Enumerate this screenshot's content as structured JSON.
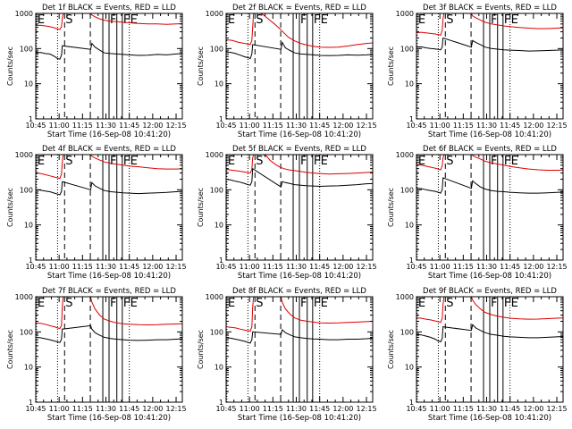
{
  "colors": {
    "events": "#000000",
    "lld": "#dd0000",
    "axes": "#000000"
  },
  "chart_data": {
    "type": "line",
    "layout": "3x3 grid of light-curve panels",
    "common": {
      "subtitle": "BLACK = Events, RED = LLD",
      "xlabel": "Start Time (16-Sep-08 10:41:20)",
      "ylabel": "Counts/sec",
      "x_unit": "minutes after 10:45",
      "xlim": [
        0,
        94
      ],
      "xticks": [
        0,
        15,
        30,
        45,
        60,
        75,
        90
      ],
      "xtick_labels": [
        "10:45",
        "11:00",
        "11:15",
        "11:30",
        "11:45",
        "12:00",
        "12:15"
      ],
      "yscale": "log",
      "ylim": [
        1,
        1000
      ],
      "yticks": [
        1,
        10,
        100,
        1000
      ],
      "ytick_labels": [
        "1",
        "10",
        "100",
        "1000"
      ],
      "markers": [
        {
          "label": "E",
          "x": 0.5,
          "style": "dotted"
        },
        {
          "label": "",
          "x": 14,
          "style": "dotted"
        },
        {
          "label": "S",
          "x": 18.5,
          "style": "dashed"
        },
        {
          "label": "",
          "x": 35,
          "style": "dashed"
        },
        {
          "label": "",
          "x": 43,
          "style": "solid"
        },
        {
          "label": "F",
          "x": 47,
          "style": "solid"
        },
        {
          "label": "",
          "x": 52,
          "style": "solid"
        },
        {
          "label": "F",
          "x": 55.5,
          "style": "solid"
        },
        {
          "label": "E",
          "x": 60,
          "style": "dotted"
        }
      ]
    },
    "panels": [
      {
        "title": "Det 1f",
        "events": {
          "x": [
            0,
            3,
            6,
            9,
            12,
            14,
            15.5,
            16.5,
            17,
            35.2,
            36,
            38,
            41,
            44,
            48,
            52,
            56,
            60,
            66,
            72,
            78,
            84,
            90,
            94
          ],
          "y": [
            75,
            78,
            72,
            70,
            60,
            52,
            50,
            65,
            120,
            95,
            140,
            110,
            90,
            75,
            72,
            70,
            68,
            66,
            64,
            65,
            68,
            66,
            70,
            72
          ]
        },
        "lld": {
          "x": [
            0,
            3,
            6,
            9,
            12,
            14,
            15.5,
            16.5,
            17,
            17.6,
            35.2,
            36,
            38,
            41,
            44,
            48,
            52,
            56,
            60,
            66,
            72,
            78,
            84,
            90,
            94
          ],
          "y": [
            450,
            460,
            440,
            420,
            390,
            360,
            350,
            420,
            700,
            1000,
            1000,
            900,
            800,
            700,
            640,
            600,
            580,
            560,
            540,
            520,
            500,
            500,
            490,
            500,
            510
          ]
        }
      },
      {
        "title": "Det 2f",
        "events": {
          "x": [
            0,
            3,
            6,
            9,
            12,
            14,
            15.5,
            16.5,
            17,
            35.2,
            36,
            38,
            41,
            44,
            48,
            52,
            56,
            60,
            66,
            72,
            78,
            84,
            90,
            94
          ],
          "y": [
            80,
            78,
            72,
            65,
            58,
            55,
            52,
            70,
            130,
            95,
            150,
            105,
            88,
            75,
            70,
            68,
            66,
            64,
            63,
            64,
            66,
            65,
            66,
            68
          ]
        },
        "lld": {
          "x": [
            0,
            4,
            8,
            12,
            15.5,
            16.5,
            17,
            17.6,
            22,
            24,
            27,
            31,
            34,
            37,
            40,
            44,
            48,
            52,
            56,
            60,
            66,
            72,
            78,
            84,
            90,
            94
          ],
          "y": [
            180,
            170,
            150,
            140,
            130,
            170,
            400,
            1000,
            1000,
            900,
            700,
            500,
            380,
            280,
            210,
            165,
            140,
            125,
            115,
            110,
            108,
            110,
            118,
            130,
            140,
            145
          ]
        }
      },
      {
        "title": "Det 3f",
        "events": {
          "x": [
            0,
            3,
            6,
            9,
            12,
            14,
            15.5,
            16.5,
            17,
            35.2,
            36,
            38,
            41,
            44,
            48,
            52,
            56,
            60,
            66,
            72,
            78,
            84,
            90,
            94
          ],
          "y": [
            110,
            112,
            105,
            100,
            98,
            95,
            92,
            110,
            200,
            110,
            170,
            150,
            130,
            110,
            100,
            96,
            92,
            90,
            88,
            85,
            86,
            88,
            90,
            92
          ]
        },
        "lld": {
          "x": [
            0,
            3,
            6,
            9,
            12,
            14,
            15.5,
            16.5,
            17,
            17.6,
            35.2,
            36,
            38,
            41,
            44,
            48,
            52,
            56,
            60,
            66,
            72,
            78,
            84,
            90,
            94
          ],
          "y": [
            280,
            290,
            280,
            270,
            260,
            250,
            240,
            330,
            700,
            1000,
            1000,
            850,
            750,
            650,
            560,
            500,
            470,
            440,
            420,
            400,
            380,
            370,
            370,
            380,
            390
          ]
        }
      },
      {
        "title": "Det 4f",
        "events": {
          "x": [
            0,
            3,
            6,
            9,
            12,
            14,
            15.5,
            16.5,
            17,
            35.2,
            36,
            38,
            41,
            44,
            48,
            52,
            56,
            60,
            66,
            72,
            78,
            84,
            90,
            94
          ],
          "y": [
            100,
            98,
            92,
            88,
            80,
            75,
            72,
            90,
            170,
            100,
            160,
            130,
            110,
            95,
            88,
            85,
            82,
            80,
            78,
            80,
            82,
            84,
            88,
            90
          ]
        },
        "lld": {
          "x": [
            0,
            3,
            6,
            9,
            12,
            14,
            15.5,
            16.5,
            17,
            17.6,
            35.2,
            36,
            38,
            41,
            44,
            48,
            52,
            56,
            60,
            66,
            72,
            78,
            84,
            90,
            94
          ],
          "y": [
            300,
            290,
            270,
            250,
            230,
            220,
            210,
            280,
            600,
            1000,
            1000,
            900,
            800,
            700,
            620,
            570,
            530,
            500,
            470,
            450,
            420,
            400,
            390,
            390,
            395
          ]
        }
      },
      {
        "title": "Det 5f",
        "events": {
          "x": [
            0,
            3,
            6,
            9,
            12,
            14,
            15.5,
            16.5,
            17,
            35.2,
            36,
            38,
            41,
            44,
            48,
            52,
            56,
            60,
            66,
            72,
            78,
            84,
            90,
            94
          ],
          "y": [
            200,
            190,
            175,
            165,
            150,
            140,
            135,
            170,
            400,
            120,
            170,
            160,
            150,
            140,
            135,
            130,
            128,
            125,
            128,
            130,
            135,
            140,
            148,
            150
          ]
        },
        "lld": {
          "x": [
            0,
            4,
            8,
            12,
            15.5,
            16.5,
            17,
            17.6,
            24,
            26,
            28,
            31,
            34,
            37,
            40,
            44,
            48,
            52,
            56,
            60,
            66,
            72,
            78,
            84,
            90,
            94
          ],
          "y": [
            380,
            360,
            340,
            320,
            300,
            380,
            800,
            1000,
            1000,
            900,
            700,
            550,
            450,
            400,
            370,
            350,
            330,
            310,
            300,
            290,
            280,
            285,
            290,
            300,
            310,
            320
          ]
        }
      },
      {
        "title": "Det 6f",
        "events": {
          "x": [
            0,
            3,
            6,
            9,
            12,
            14,
            15.5,
            16.5,
            17,
            35.2,
            36,
            38,
            41,
            44,
            48,
            52,
            56,
            60,
            66,
            72,
            78,
            84,
            90,
            94
          ],
          "y": [
            110,
            108,
            100,
            95,
            90,
            85,
            80,
            100,
            220,
            110,
            180,
            150,
            120,
            105,
            95,
            90,
            88,
            85,
            82,
            80,
            80,
            82,
            84,
            86
          ]
        },
        "lld": {
          "x": [
            0,
            3,
            6,
            9,
            12,
            14,
            15.5,
            16.5,
            17,
            17.6,
            35.2,
            36,
            38,
            41,
            44,
            48,
            52,
            56,
            60,
            66,
            72,
            78,
            84,
            90,
            94
          ],
          "y": [
            520,
            500,
            470,
            440,
            410,
            390,
            370,
            480,
            800,
            1000,
            1000,
            950,
            850,
            750,
            650,
            580,
            540,
            500,
            460,
            420,
            390,
            370,
            360,
            360,
            365
          ]
        }
      },
      {
        "title": "Det 7f",
        "events": {
          "x": [
            0,
            3,
            6,
            9,
            12,
            14,
            15.5,
            16.5,
            17,
            35.2,
            36,
            38,
            41,
            44,
            48,
            52,
            56,
            60,
            66,
            72,
            78,
            84,
            90,
            94
          ],
          "y": [
            70,
            68,
            64,
            60,
            55,
            52,
            50,
            62,
            120,
            150,
            120,
            95,
            80,
            70,
            65,
            62,
            60,
            58,
            57,
            58,
            60,
            60,
            62,
            64
          ]
        },
        "lld": {
          "x": [
            0,
            3,
            6,
            9,
            12,
            14,
            15.5,
            16.5,
            17,
            17.6,
            35.2,
            36,
            38,
            41,
            44,
            48,
            52,
            56,
            60,
            66,
            72,
            78,
            84,
            90,
            94
          ],
          "y": [
            180,
            175,
            165,
            150,
            140,
            130,
            125,
            150,
            500,
            1000,
            1000,
            700,
            450,
            300,
            230,
            200,
            180,
            170,
            165,
            160,
            158,
            160,
            165,
            168,
            170
          ]
        }
      },
      {
        "title": "Det 8f",
        "events": {
          "x": [
            0,
            3,
            6,
            9,
            12,
            14,
            15.5,
            16.5,
            17,
            35.2,
            36,
            38,
            41,
            44,
            48,
            52,
            56,
            60,
            66,
            72,
            78,
            84,
            90,
            94
          ],
          "y": [
            68,
            66,
            62,
            58,
            54,
            50,
            48,
            60,
            100,
            85,
            115,
            95,
            82,
            72,
            68,
            65,
            63,
            62,
            60,
            60,
            62,
            62,
            64,
            66
          ]
        },
        "lld": {
          "x": [
            0,
            3,
            6,
            9,
            12,
            14,
            15.5,
            16.5,
            17,
            17.6,
            35.2,
            36,
            38,
            41,
            44,
            48,
            52,
            56,
            60,
            66,
            72,
            78,
            84,
            90,
            94
          ],
          "y": [
            140,
            135,
            130,
            120,
            112,
            108,
            105,
            140,
            500,
            1000,
            1000,
            700,
            450,
            320,
            250,
            215,
            200,
            190,
            180,
            178,
            180,
            185,
            190,
            195,
            200
          ]
        }
      },
      {
        "title": "Det 9f",
        "events": {
          "x": [
            0,
            3,
            6,
            9,
            12,
            14,
            15.5,
            16.5,
            17,
            35.2,
            36,
            38,
            41,
            44,
            48,
            52,
            56,
            60,
            66,
            72,
            78,
            84,
            90,
            94
          ],
          "y": [
            85,
            82,
            76,
            70,
            62,
            55,
            52,
            65,
            140,
            110,
            160,
            130,
            110,
            95,
            85,
            80,
            75,
            72,
            70,
            68,
            68,
            70,
            72,
            74
          ]
        },
        "lld": {
          "x": [
            0,
            3,
            6,
            9,
            12,
            14,
            15.5,
            16.5,
            17,
            17.6,
            35.2,
            36,
            38,
            41,
            44,
            48,
            52,
            56,
            60,
            66,
            72,
            78,
            84,
            90,
            94
          ],
          "y": [
            250,
            245,
            230,
            220,
            205,
            195,
            185,
            240,
            600,
            1000,
            1000,
            800,
            600,
            450,
            360,
            310,
            280,
            260,
            245,
            235,
            230,
            232,
            238,
            245,
            250
          ]
        }
      }
    ]
  }
}
